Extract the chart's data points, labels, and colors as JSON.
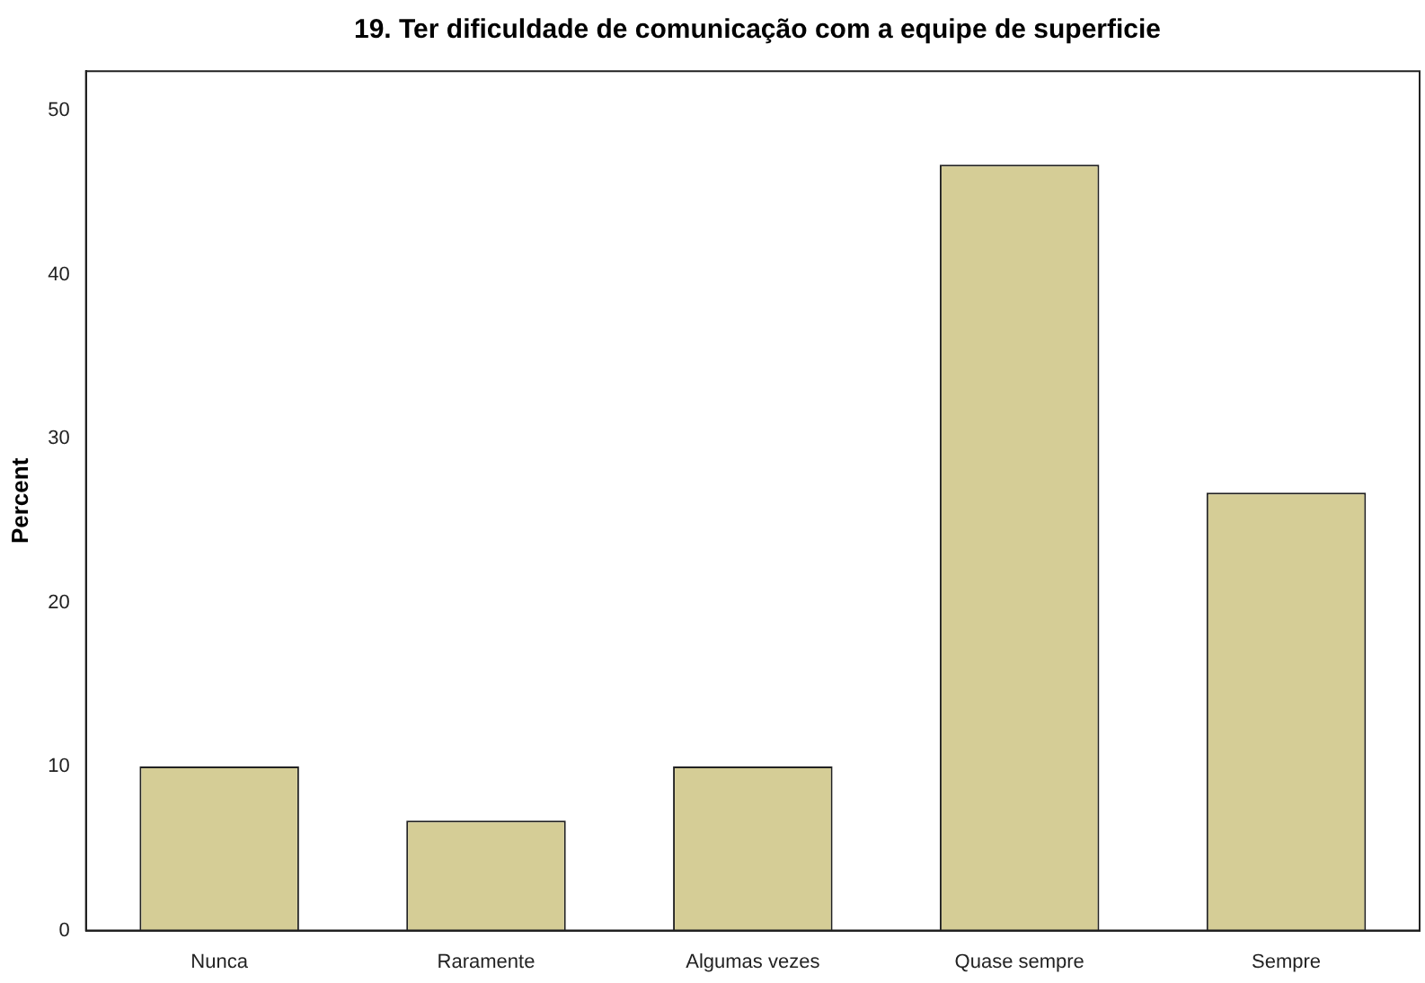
{
  "chart_data": {
    "type": "bar",
    "title": "19. Ter dificuldade de comunicação com a equipe de superficie",
    "ylabel": "Percent",
    "categories": [
      "Nunca",
      "Raramente",
      "Algumas vezes",
      "Quase sempre",
      "Sempre"
    ],
    "values": [
      10,
      6.7,
      10,
      46.7,
      26.7
    ],
    "color": "#d5cd96",
    "ylim": [
      0,
      52.4
    ],
    "yticks": [
      0,
      10,
      20,
      30,
      40,
      50
    ],
    "grid": false,
    "legend": false
  }
}
